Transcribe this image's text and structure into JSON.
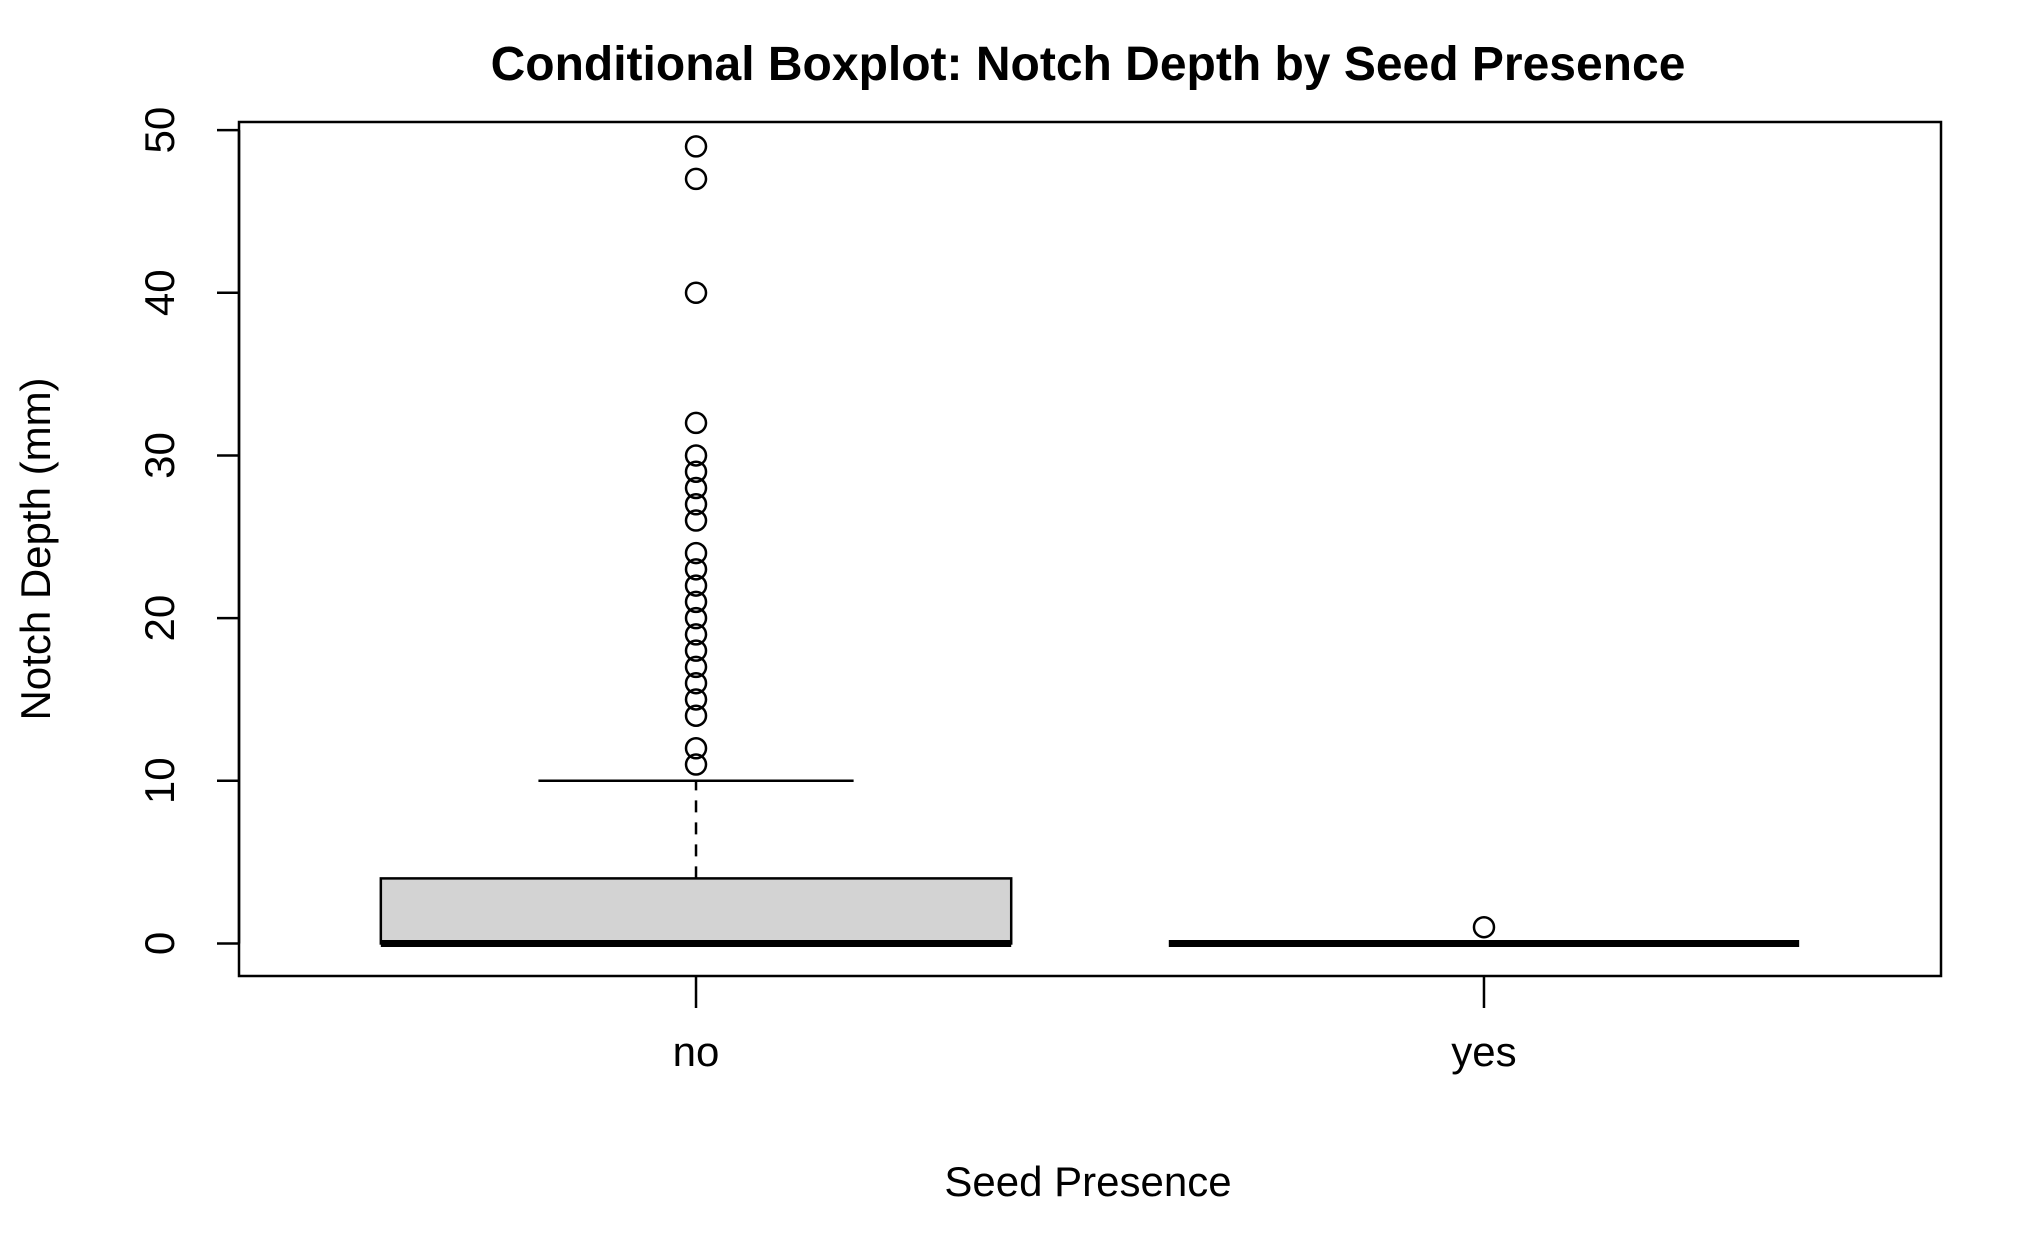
{
  "chart_data": {
    "type": "boxplot",
    "title": "Conditional Boxplot: Notch Depth by Seed Presence",
    "xlabel": "Seed Presence",
    "ylabel": "Notch Depth (mm)",
    "ylim": [
      -2,
      50.5
    ],
    "yticks": [
      0,
      10,
      20,
      30,
      40,
      50
    ],
    "grid": false,
    "colors": {
      "box_fill": "#d3d3d3",
      "stroke": "#000000"
    },
    "categories": [
      "no",
      "yes"
    ],
    "boxes": [
      {
        "category": "no",
        "min": 0,
        "q1": 0,
        "median": 0,
        "q3": 4,
        "whisker_high": 10,
        "outliers": [
          11,
          12,
          14,
          15,
          16,
          17,
          18,
          19,
          20,
          21,
          22,
          23,
          24,
          26,
          27,
          28,
          29,
          30,
          32,
          40,
          47,
          49
        ]
      },
      {
        "category": "yes",
        "min": 0,
        "q1": 0,
        "median": 0,
        "q3": 0,
        "whisker_high": 0,
        "outliers": [
          1
        ]
      }
    ]
  }
}
